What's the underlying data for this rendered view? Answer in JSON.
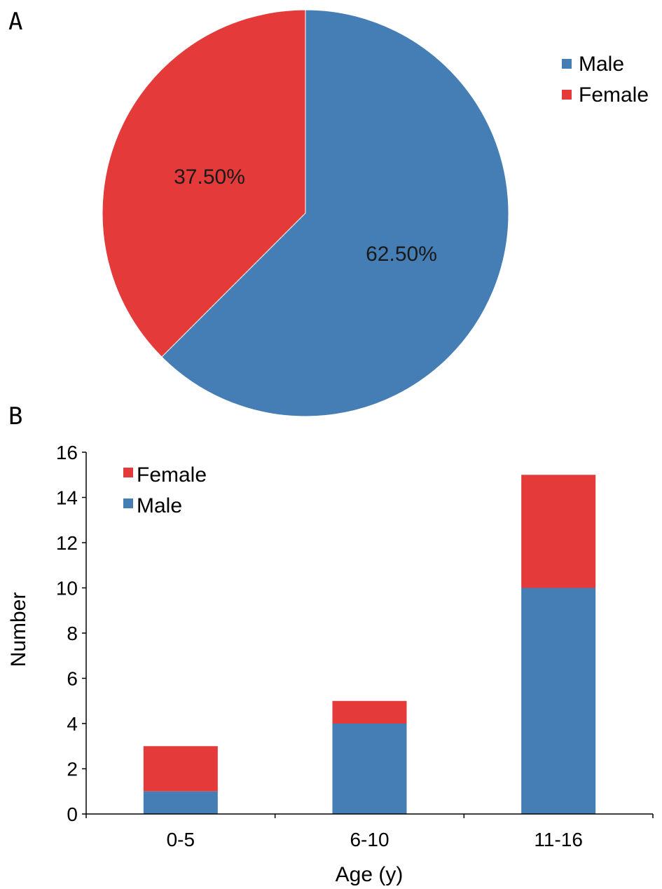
{
  "panels": {
    "a": "A",
    "b": "B"
  },
  "colors": {
    "male": "#457EB5",
    "female": "#E43B3A"
  },
  "chart_data": [
    {
      "type": "pie",
      "slices": [
        {
          "name": "Male",
          "value": 62.5,
          "label": "62.50%"
        },
        {
          "name": "Female",
          "value": 37.5,
          "label": "37.50%"
        }
      ],
      "legend": {
        "entries": [
          "Male",
          "Female"
        ],
        "placement": "top-right"
      }
    },
    {
      "type": "bar",
      "stacked": true,
      "categories": [
        "0-5",
        "6-10",
        "11-16"
      ],
      "series": [
        {
          "name": "Male",
          "values": [
            1,
            4,
            10
          ]
        },
        {
          "name": "Female",
          "values": [
            2,
            1,
            5
          ]
        }
      ],
      "xlabel": "Age (y)",
      "ylabel": "Number",
      "ylim": [
        0,
        16
      ],
      "yticks": [
        0,
        2,
        4,
        6,
        8,
        10,
        12,
        14,
        16
      ],
      "legend": {
        "entries": [
          "Female",
          "Male"
        ],
        "placement": "top-left"
      }
    }
  ]
}
